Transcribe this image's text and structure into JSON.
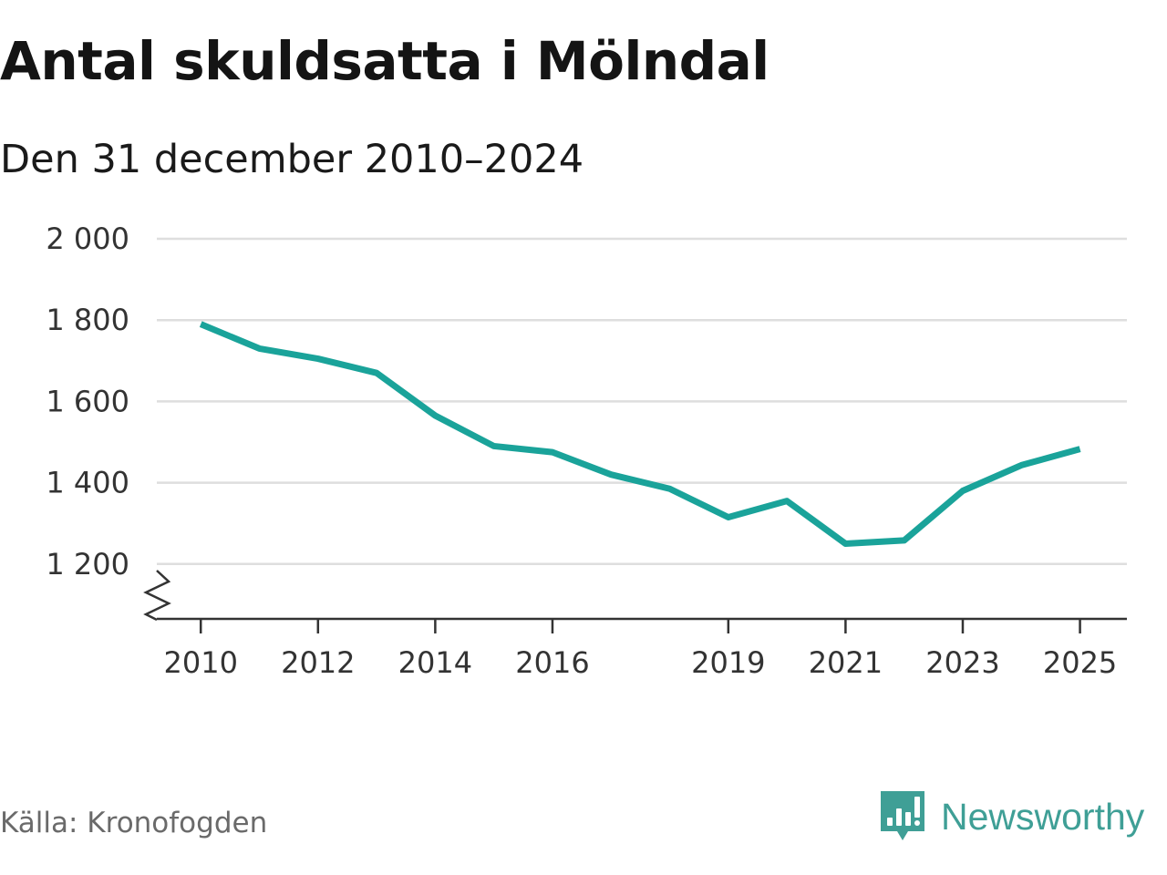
{
  "title": "Antal skuldsatta i Mölndal",
  "subtitle": "Den 31 december 2010–2024",
  "source": "Källa: Kronofogden",
  "brand": {
    "name": "Newsworthy",
    "color": "#3f9f96",
    "icon": "newsworthy-logo-icon"
  },
  "chart_data": {
    "type": "line",
    "title": "Antal skuldsatta i Mölndal",
    "subtitle": "Den 31 december 2010–2024",
    "xlabel": "",
    "ylabel": "",
    "x": [
      2010,
      2011,
      2012,
      2013,
      2014,
      2015,
      2016,
      2017,
      2018,
      2019,
      2020,
      2021,
      2022,
      2023,
      2024,
      2025
    ],
    "series": [
      {
        "name": "Antal skuldsatta",
        "color": "#1aa39a",
        "values": [
          1790,
          1730,
          1705,
          1670,
          1565,
          1490,
          1475,
          1420,
          1385,
          1315,
          1355,
          1250,
          1258,
          1380,
          1443,
          1483
        ]
      }
    ],
    "ylim": [
      1065,
      2000
    ],
    "xlim": [
      2009.25,
      2025.8
    ],
    "yticks": [
      1200,
      1400,
      1600,
      1800,
      2000
    ],
    "ytick_labels": [
      "1 200",
      "1 400",
      "1 600",
      "1 800",
      "2 000"
    ],
    "xticks": [
      2010,
      2012,
      2014,
      2016,
      2019,
      2021,
      2023,
      2025
    ],
    "xtick_labels": [
      "2010",
      "2012",
      "2014",
      "2016",
      "2019",
      "2021",
      "2023",
      "2025"
    ],
    "grid": true,
    "axis_break": true
  }
}
